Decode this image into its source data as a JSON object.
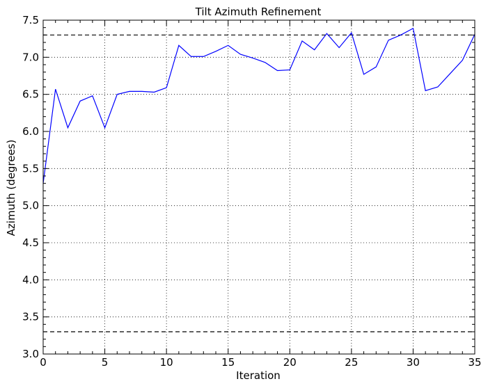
{
  "chart_data": {
    "type": "line",
    "title": "Tilt Azimuth Refinement",
    "xlabel": "Iteration",
    "ylabel": "Azimuth (degrees)",
    "xlim": [
      0,
      35
    ],
    "ylim": [
      3.0,
      7.5
    ],
    "xticks": [
      0,
      5,
      10,
      15,
      20,
      25,
      30,
      35
    ],
    "yticks": [
      3.0,
      3.5,
      4.0,
      4.5,
      5.0,
      5.5,
      6.0,
      6.5,
      7.0,
      7.5
    ],
    "xtick_labels": [
      "0",
      "5",
      "10",
      "15",
      "20",
      "25",
      "30",
      "35"
    ],
    "ytick_labels": [
      "3.0",
      "3.5",
      "4.0",
      "4.5",
      "5.0",
      "5.5",
      "6.0",
      "6.5",
      "7.0",
      "7.5"
    ],
    "grid": true,
    "series": [
      {
        "color": "#0000ff",
        "x": [
          0,
          1,
          2,
          3,
          4,
          5,
          6,
          7,
          8,
          9,
          10,
          11,
          12,
          13,
          14,
          15,
          16,
          17,
          18,
          19,
          20,
          21,
          22,
          23,
          24,
          25,
          26,
          27,
          28,
          29,
          30,
          31,
          32,
          33,
          34,
          35
        ],
        "y": [
          5.3,
          6.57,
          6.05,
          6.41,
          6.48,
          6.05,
          6.5,
          6.54,
          6.54,
          6.53,
          6.59,
          7.16,
          7.01,
          7.01,
          7.08,
          7.16,
          7.04,
          6.99,
          6.93,
          6.82,
          6.83,
          7.22,
          7.1,
          7.32,
          7.13,
          7.33,
          6.77,
          6.87,
          7.23,
          7.3,
          7.39,
          6.55,
          6.6,
          6.78,
          6.96,
          7.31
        ]
      }
    ],
    "reference_lines": [
      {
        "y": 7.3,
        "style": "dashed",
        "color": "#000000"
      },
      {
        "y": 3.3,
        "style": "dashed",
        "color": "#000000"
      }
    ]
  }
}
